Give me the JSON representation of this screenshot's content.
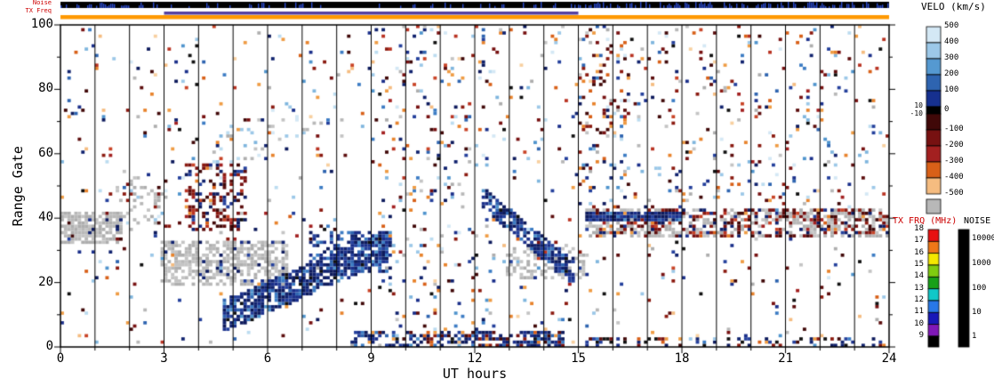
{
  "strips": {
    "noise_label": "Noise",
    "txfreq_label": "TX Freq",
    "noise_bar_color": "#000000",
    "noise_tick_color": "#2b4bd0",
    "freq_orange_color": "#ff9900",
    "freq_purple_color": "#5540a0",
    "purple_hours": [
      3,
      15
    ],
    "orange_hours": [
      0,
      24
    ]
  },
  "colorbars": {
    "velo": {
      "title": "VELO (km/s)",
      "tick_labels": [
        "500",
        "400",
        "300",
        "200",
        "100",
        "0",
        "-100",
        "-200",
        "-300",
        "-400",
        "-500"
      ],
      "side_tick_labels": [
        "10",
        "-10"
      ],
      "positive_colors": [
        "#d4e8f5",
        "#9cc8e8",
        "#5599d1",
        "#2e64b0",
        "#16308f"
      ],
      "zero_color": "#000000",
      "negative_colors": [
        "#400808",
        "#771111",
        "#a32020",
        "#d86018",
        "#f5bc80"
      ],
      "ground_scatter_color": "#b8b8b8"
    },
    "tx": {
      "title": "TX FRQ (MHz)",
      "tick_labels": [
        "18",
        "17",
        "16",
        "15",
        "14",
        "13",
        "12",
        "11",
        "10",
        "9"
      ],
      "segment_colors": [
        "#e81010",
        "#f07818",
        "#f5e800",
        "#80cc10",
        "#18a018",
        "#10c8c8",
        "#2878e8",
        "#1818b8",
        "#8018b8"
      ],
      "bottom_color": "#000000"
    },
    "noise": {
      "title": "NOISE",
      "tick_labels": [
        "10000",
        "1000",
        "100",
        "10",
        "1"
      ],
      "bar_color": "#000000"
    }
  },
  "chart_data": {
    "type": "heatmap",
    "title": "",
    "xlabel": "UT hours",
    "ylabel": "Range Gate",
    "x_ticks": [
      "0",
      "3",
      "6",
      "9",
      "12",
      "15",
      "18",
      "21",
      "24"
    ],
    "y_ticks": [
      "100",
      "80",
      "60",
      "40",
      "20",
      "0"
    ],
    "xlim_hours": [
      0,
      24
    ],
    "ylim_gates": [
      0,
      100
    ],
    "hour_grid_lines": true,
    "columns": 240,
    "rows": 100,
    "seed": 1337,
    "base_density": 0.034,
    "palettes": {
      "navy": [
        "#10226e",
        "#1a2f8a",
        "#0d1a5c",
        "#24409c"
      ],
      "blue": [
        "#2e64b0",
        "#3c7cc4",
        "#4f94cd"
      ],
      "lightblue": [
        "#9cc8e8",
        "#bcdcf0",
        "#d4e8f5",
        "#7fb6de"
      ],
      "darkred": [
        "#400808",
        "#5c0d0d",
        "#771111",
        "#8b1a10"
      ],
      "red": [
        "#a32020",
        "#b93322",
        "#c94427"
      ],
      "orange": [
        "#d86018",
        "#e8832c",
        "#ef9c44"
      ],
      "lightorange": [
        "#f5bc80",
        "#f8d0a0"
      ],
      "gray": [
        "#b8b8b8",
        "#c4c4c4",
        "#aeaeae"
      ],
      "black": [
        "#101010"
      ]
    },
    "base_weights": {
      "navy": 0.16,
      "blue": 0.1,
      "lightblue": 0.12,
      "darkred": 0.2,
      "red": 0.07,
      "orange": 0.13,
      "lightorange": 0.06,
      "gray": 0.1,
      "black": 0.06
    },
    "features": [
      {
        "name": "gray-band-early",
        "t0": 0.0,
        "t1": 1.8,
        "g0": 32,
        "g1": 41,
        "density": 0.72,
        "palette": {
          "gray": 0.9,
          "darkred": 0.06,
          "navy": 0.04
        }
      },
      {
        "name": "gray-blob-2-3",
        "t0": 1.6,
        "t1": 3.1,
        "g0": 36,
        "g1": 52,
        "density": 0.2,
        "palette": {
          "gray": 0.68,
          "darkred": 0.16,
          "lightblue": 0.16
        }
      },
      {
        "name": "navy-rising-streak",
        "t0": 4.7,
        "t1": 9.5,
        "diag": {
          "c0": 9,
          "slope": 4.6
        },
        "half": 5,
        "density": 0.78,
        "palette": {
          "navy": 0.75,
          "blue": 0.2,
          "black": 0.05
        }
      },
      {
        "name": "red-blue-blob",
        "t0": 3.6,
        "t1": 5.4,
        "g0": 36,
        "g1": 56,
        "density": 0.32,
        "palette": {
          "darkred": 0.45,
          "red": 0.18,
          "navy": 0.32,
          "orange": 0.05
        }
      },
      {
        "name": "gray-band-left",
        "t0": 2.9,
        "t1": 6.6,
        "g0": 19,
        "g1": 32,
        "density": 0.6,
        "palette": {
          "gray": 0.9,
          "navy": 0.1
        }
      },
      {
        "name": "navy-cluster-7-9",
        "t0": 7.2,
        "t1": 9.6,
        "g0": 23,
        "g1": 35,
        "density": 0.5,
        "palette": {
          "navy": 0.7,
          "blue": 0.25,
          "gray": 0.05
        }
      },
      {
        "name": "lightblue-diag-top",
        "t0": 4.3,
        "t1": 7.4,
        "diag": {
          "c0": 56,
          "slope": 6.0
        },
        "half": 7,
        "density": 0.1,
        "palette": {
          "lightblue": 0.6,
          "gray": 0.28,
          "navy": 0.12
        }
      },
      {
        "name": "navy-falling-streak",
        "t0": 12.2,
        "t1": 14.9,
        "diag": {
          "c0": 46,
          "slope": -8.8
        },
        "half": 3.6,
        "density": 0.78,
        "palette": {
          "navy": 0.8,
          "blue": 0.15,
          "black": 0.05
        }
      },
      {
        "name": "gray-band-13-15",
        "t0": 12.9,
        "t1": 15.3,
        "g0": 21,
        "g1": 30,
        "density": 0.4,
        "palette": {
          "gray": 0.92,
          "navy": 0.08
        }
      },
      {
        "name": "navy-line-right",
        "t0": 15.2,
        "t1": 18.0,
        "g0": 39,
        "g1": 41,
        "density": 0.85,
        "palette": {
          "navy": 0.88,
          "blue": 0.12
        }
      },
      {
        "name": "right-band",
        "t0": 15.2,
        "t1": 24.0,
        "g0": 34,
        "g1": 42,
        "density": 0.6,
        "palette": {
          "gray": 0.5,
          "darkred": 0.28,
          "navy": 0.14,
          "red": 0.05,
          "orange": 0.03
        }
      },
      {
        "name": "column-15-16",
        "t0": 15.0,
        "t1": 16.4,
        "g0": 42,
        "g1": 98,
        "density": 0.12,
        "palette": {
          "darkred": 0.3,
          "navy": 0.25,
          "blue": 0.1,
          "orange": 0.15,
          "lightblue": 0.1,
          "gray": 0.1
        }
      },
      {
        "name": "bottom-dense-mid",
        "t0": 8.4,
        "t1": 14.6,
        "g0": 0,
        "g1": 4,
        "density": 0.5,
        "palette": {
          "navy": 0.5,
          "blue": 0.2,
          "darkred": 0.15,
          "orange": 0.1,
          "black": 0.05
        }
      },
      {
        "name": "bottom-right",
        "t0": 15.0,
        "t1": 24.0,
        "g0": 0,
        "g1": 2,
        "density": 0.3,
        "palette": {
          "navy": 0.4,
          "darkred": 0.25,
          "orange": 0.15,
          "blue": 0.1,
          "black": 0.1
        }
      },
      {
        "name": "mid-busy",
        "t0": 9.3,
        "t1": 12.6,
        "g0": 0,
        "g1": 100,
        "density": 0.05,
        "palette": {
          "navy": 0.18,
          "blue": 0.1,
          "lightblue": 0.16,
          "darkred": 0.2,
          "red": 0.08,
          "orange": 0.16,
          "gray": 0.08,
          "black": 0.04
        }
      },
      {
        "name": "right-upper-speckle",
        "t0": 16.5,
        "t1": 24.0,
        "g0": 42,
        "g1": 100,
        "density": 0.04,
        "palette": {
          "darkred": 0.25,
          "navy": 0.2,
          "lightblue": 0.15,
          "orange": 0.15,
          "red": 0.1,
          "gray": 0.1,
          "black": 0.05
        }
      }
    ]
  }
}
